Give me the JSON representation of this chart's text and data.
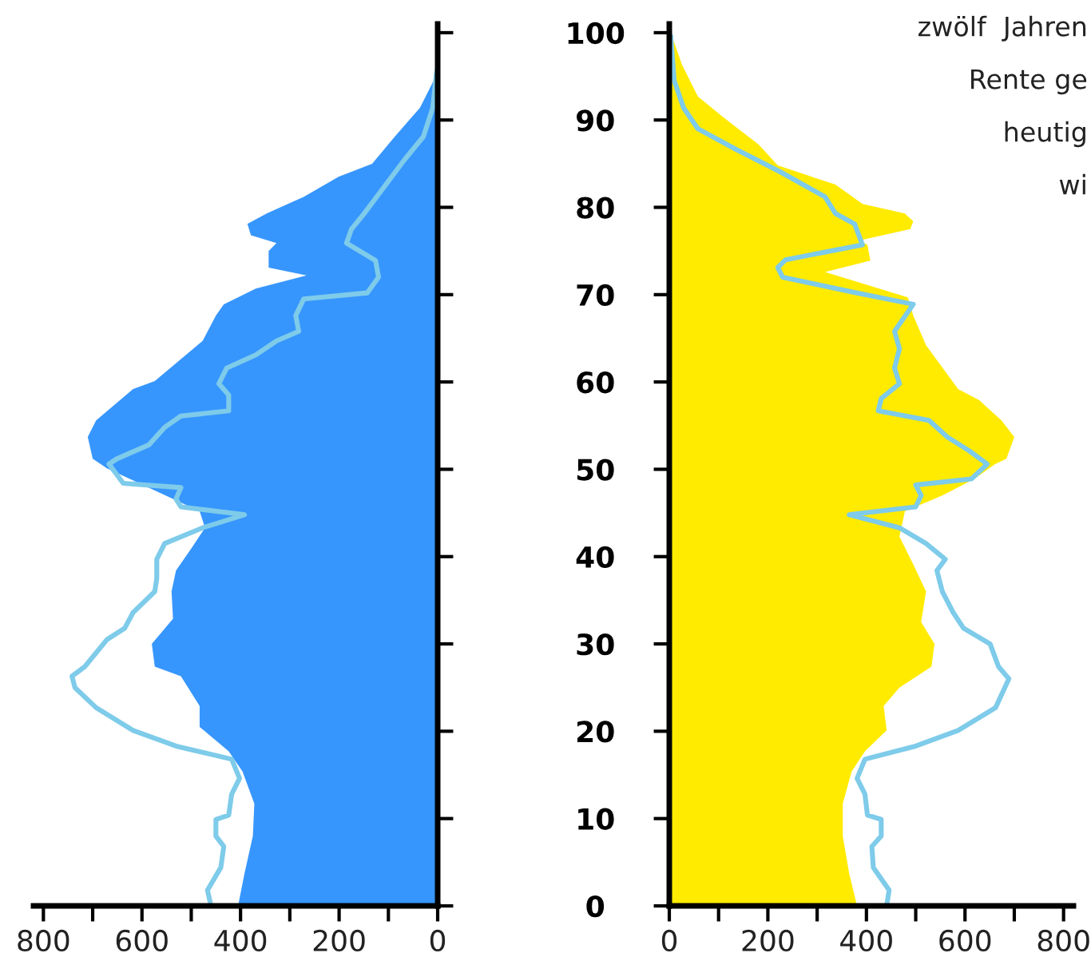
{
  "chart_data": [
    {
      "type": "area",
      "orientation": "horizontal",
      "xlim": [
        820,
        0
      ],
      "xticks": [
        800,
        {
          "value": 700,
          "label": null
        },
        600,
        {
          "value": 500,
          "label": null
        },
        400,
        {
          "value": 300,
          "label": null
        },
        200,
        {
          "value": 100,
          "label": null
        },
        0
      ],
      "ylim": [
        0,
        101
      ],
      "yticks": [
        0,
        10,
        20,
        30,
        40,
        50,
        60,
        70,
        80,
        90,
        100
      ],
      "series": [
        {
          "color": "#3796fd",
          "x": [
            0,
            3.7,
            8,
            11.7,
            15.4,
            17.7,
            20.5,
            22.9,
            26.3,
            27.4,
            30,
            32.9,
            36,
            38.4,
            41,
            43.3,
            45.2,
            50.1,
            51.2,
            53.7,
            55.6,
            59.2,
            60.1,
            64.7,
            67.6,
            68.9,
            70.7,
            72.2,
            73.1,
            75,
            75.9,
            76.8,
            78.1,
            79.3,
            81.2,
            83.5,
            85,
            88.1,
            91.4,
            95.1,
            96
          ],
          "values": [
            405,
            392,
            375,
            372,
            396,
            424,
            483,
            483,
            521,
            574,
            580,
            537,
            540,
            531,
            499,
            472,
            483,
            671,
            700,
            710,
            693,
            618,
            574,
            477,
            450,
            434,
            369,
            266,
            343,
            343,
            327,
            379,
            386,
            347,
            272,
            201,
            133,
            87,
            36,
            3,
            0
          ]
        },
        {
          "type": "line",
          "color": "#7ecbea",
          "x": [
            0,
            1.8,
            4.4,
            6.8,
            8,
            9.9,
            10.4,
            12.8,
            14.6,
            16.8,
            18.3,
            20.1,
            22.7,
            25,
            26.3,
            27.4,
            30.5,
            31.8,
            33.6,
            36,
            37.5,
            39.7,
            41.5,
            43.3,
            44.8,
            45.7,
            46.6,
            47.9,
            48.4,
            50.6,
            51.2,
            52.8,
            54.8,
            56.1,
            56.7,
            58.5,
            59.8,
            61.6,
            63.1,
            64.7,
            65.8,
            67.6,
            69.5,
            70.2,
            72,
            73.9,
            75.9,
            77.5,
            79.3,
            85.4,
            88.1,
            91.4,
            95.1,
            96
          ],
          "values": [
            460,
            467,
            440,
            434,
            450,
            450,
            424,
            418,
            402,
            418,
            531,
            618,
            693,
            736,
            742,
            716,
            671,
            635,
            618,
            574,
            570,
            570,
            554,
            477,
            392,
            521,
            531,
            521,
            638,
            667,
            651,
            586,
            554,
            521,
            424,
            424,
            444,
            428,
            369,
            327,
            282,
            288,
            272,
            143,
            120,
            126,
            185,
            175,
            149,
            68,
            29,
            10,
            3,
            0
          ]
        }
      ]
    },
    {
      "type": "area",
      "orientation": "horizontal",
      "tick_labels": "x",
      "xlim": [
        0,
        820
      ],
      "xticks": [
        0,
        {
          "value": 100,
          "label": null
        },
        200,
        {
          "value": 300,
          "label": null
        },
        400,
        {
          "value": 500,
          "label": null
        },
        600,
        {
          "value": 700,
          "label": null
        },
        800
      ],
      "ylim": [
        0,
        101
      ],
      "yticks": [
        0,
        10,
        20,
        30,
        40,
        50,
        60,
        70,
        80,
        90,
        100
      ],
      "annotations": [
        "zwölf  Jahren",
        "Rente ge",
        "heutig",
        "wi"
      ],
      "series": [
        {
          "color": "#ffeb00",
          "x": [
            0,
            3.7,
            8,
            11.7,
            15.4,
            17.7,
            20.1,
            22.9,
            25,
            27.4,
            30,
            32.5,
            36,
            39.1,
            42.3,
            45.2,
            47,
            48.9,
            50.6,
            51.2,
            53.7,
            55.6,
            57.9,
            59.2,
            64.2,
            67.6,
            69.7,
            72.6,
            73.9,
            75.7,
            76.2,
            77.5,
            78.4,
            79.3,
            80.4,
            82.6,
            84.8,
            87.2,
            90.3,
            92.7,
            96.3,
            100
          ],
          "values": [
            381,
            365,
            352,
            352,
            370,
            397,
            441,
            435,
            467,
            532,
            538,
            511,
            521,
            495,
            467,
            478,
            554,
            619,
            661,
            684,
            700,
            674,
            629,
            586,
            521,
            495,
            484,
            316,
            408,
            402,
            386,
            489,
            495,
            478,
            392,
            337,
            220,
            181,
            110,
            58,
            26,
            3
          ]
        },
        {
          "type": "line",
          "color": "#7ecbea",
          "x": [
            0,
            1.8,
            4.4,
            6.8,
            8,
            9.9,
            10.4,
            12.8,
            14.6,
            16.8,
            18.3,
            20.1,
            22.7,
            26,
            27.4,
            30,
            31.8,
            33.6,
            36,
            38.4,
            39.7,
            41.5,
            43.3,
            44.8,
            45.7,
            47,
            48.2,
            48.9,
            50.6,
            52.1,
            53.7,
            55.6,
            56.7,
            58.1,
            59.8,
            61.6,
            63.8,
            65.8,
            68.9,
            70.2,
            72,
            73.1,
            74,
            75.7,
            78.1,
            79.3,
            81.2,
            84.1,
            86.7,
            89,
            91.4,
            94.5,
            99.5
          ],
          "values": [
            441,
            446,
            414,
            411,
            430,
            430,
            402,
            397,
            381,
            397,
            500,
            586,
            662,
            689,
            668,
            651,
            597,
            576,
            554,
            543,
            560,
            521,
            467,
            365,
            500,
            511,
            500,
            613,
            645,
            609,
            564,
            527,
            424,
            430,
            467,
            457,
            467,
            457,
            495,
            381,
            230,
            220,
            236,
            392,
            376,
            337,
            316,
            224,
            133,
            58,
            29,
            10,
            3
          ]
        }
      ]
    }
  ]
}
